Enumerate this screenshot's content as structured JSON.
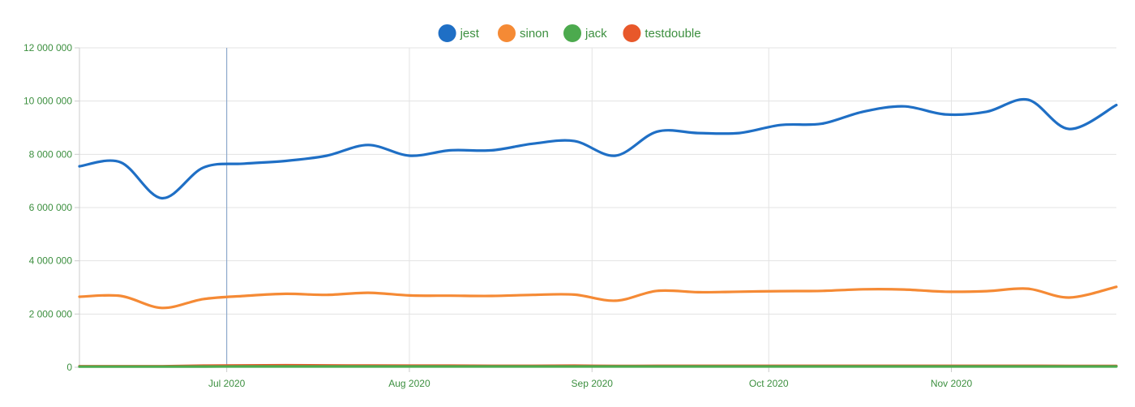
{
  "chart_data": {
    "type": "line",
    "title": "",
    "xlabel": "",
    "ylabel": "",
    "ylim": [
      0,
      12000000
    ],
    "yticks": [
      {
        "value": 0,
        "label": "0"
      },
      {
        "value": 2000000,
        "label": "2 000 000"
      },
      {
        "value": 4000000,
        "label": "4 000 000"
      },
      {
        "value": 6000000,
        "label": "6 000 000"
      },
      {
        "value": 8000000,
        "label": "8 000 000"
      },
      {
        "value": 10000000,
        "label": "10 000 000"
      },
      {
        "value": 12000000,
        "label": "12 000 000"
      }
    ],
    "xlim": [
      "2020-06-06",
      "2020-11-29"
    ],
    "xticks": [
      {
        "date": "2020-07-01",
        "label": "Jul 2020"
      },
      {
        "date": "2020-08-01",
        "label": "Aug 2020"
      },
      {
        "date": "2020-09-01",
        "label": "Sep 2020"
      },
      {
        "date": "2020-10-01",
        "label": "Oct 2020"
      },
      {
        "date": "2020-11-01",
        "label": "Nov 2020"
      }
    ],
    "highlight_date": "2020-07-01",
    "grid": true,
    "legend_position": "top-center",
    "x": [
      "2020-06-06",
      "2020-06-13",
      "2020-06-20",
      "2020-06-27",
      "2020-07-04",
      "2020-07-11",
      "2020-07-18",
      "2020-07-25",
      "2020-08-01",
      "2020-08-08",
      "2020-08-15",
      "2020-08-22",
      "2020-08-29",
      "2020-09-05",
      "2020-09-12",
      "2020-09-19",
      "2020-09-26",
      "2020-10-03",
      "2020-10-10",
      "2020-10-17",
      "2020-10-24",
      "2020-10-31",
      "2020-11-07",
      "2020-11-14",
      "2020-11-21",
      "2020-11-29"
    ],
    "series": [
      {
        "name": "jest",
        "color": "#1f6fc5",
        "values": [
          7550000,
          7700000,
          6350000,
          7500000,
          7650000,
          7750000,
          7950000,
          8350000,
          7950000,
          8150000,
          8150000,
          8400000,
          8500000,
          7950000,
          8850000,
          8800000,
          8800000,
          9100000,
          9150000,
          9600000,
          9800000,
          9500000,
          9600000,
          10050000,
          8950000,
          9850000
        ]
      },
      {
        "name": "sinon",
        "color": "#f58a35",
        "values": [
          2650000,
          2680000,
          2230000,
          2560000,
          2680000,
          2760000,
          2720000,
          2800000,
          2700000,
          2690000,
          2680000,
          2720000,
          2730000,
          2500000,
          2870000,
          2820000,
          2840000,
          2860000,
          2870000,
          2930000,
          2920000,
          2840000,
          2860000,
          2950000,
          2620000,
          3020000
        ]
      },
      {
        "name": "jack",
        "color": "#4caa4e",
        "values": [
          25000,
          25000,
          25000,
          28000,
          30000,
          30000,
          30000,
          30000,
          30000,
          30000,
          30000,
          30000,
          30000,
          30000,
          30000,
          30000,
          30000,
          30000,
          30000,
          30000,
          30000,
          30000,
          30000,
          30000,
          30000,
          30000
        ]
      },
      {
        "name": "testdouble",
        "color": "#e8582a",
        "values": [
          40000,
          40000,
          40000,
          60000,
          70000,
          75000,
          70000,
          65000,
          60000,
          60000,
          55000,
          55000,
          60000,
          50000,
          55000,
          55000,
          55000,
          55000,
          55000,
          55000,
          55000,
          55000,
          55000,
          55000,
          50000,
          50000
        ]
      }
    ]
  }
}
